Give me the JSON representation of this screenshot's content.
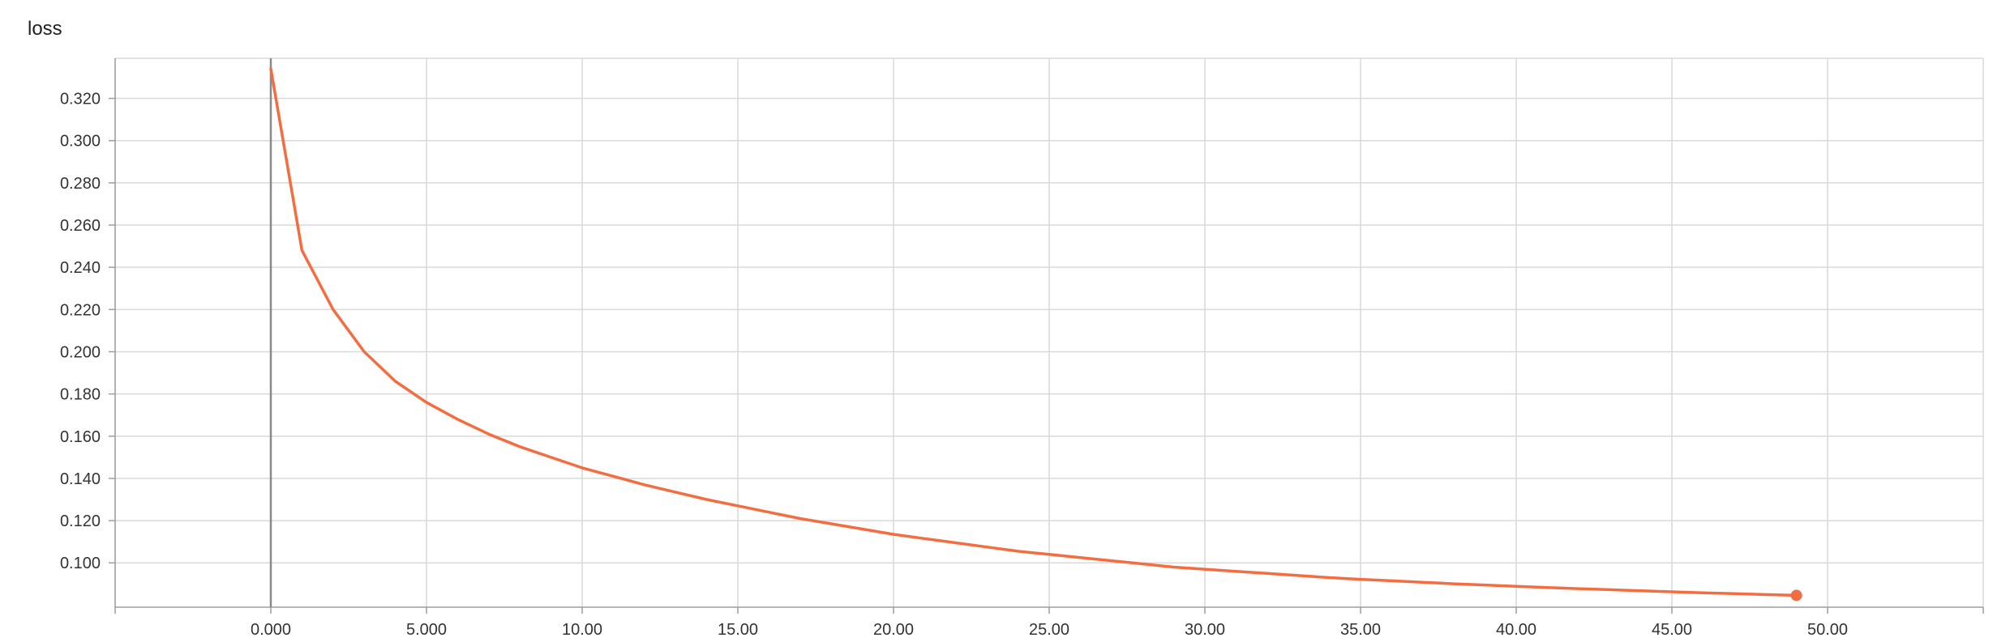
{
  "chart_data": {
    "type": "line",
    "title": "loss",
    "xlim": [
      -5,
      55
    ],
    "ylim": [
      0.079,
      0.339
    ],
    "x_ticks": [
      0,
      5,
      10,
      15,
      20,
      25,
      30,
      35,
      40,
      45,
      50
    ],
    "x_tick_labels": [
      "0.000",
      "5.000",
      "10.00",
      "15.00",
      "20.00",
      "25.00",
      "30.00",
      "35.00",
      "40.00",
      "45.00",
      "50.00"
    ],
    "y_ticks": [
      0.1,
      0.12,
      0.14,
      0.16,
      0.18,
      0.2,
      0.22,
      0.24,
      0.26,
      0.28,
      0.3,
      0.32
    ],
    "y_tick_labels": [
      "0.100",
      "0.120",
      "0.140",
      "0.160",
      "0.180",
      "0.200",
      "0.220",
      "0.240",
      "0.260",
      "0.280",
      "0.300",
      "0.320"
    ],
    "grid": true,
    "series": [
      {
        "color": "#f36d40",
        "x": [
          0,
          1,
          2,
          3,
          4,
          5,
          6,
          7,
          8,
          9,
          10,
          11,
          12,
          13,
          14,
          15,
          16,
          17,
          18,
          19,
          20,
          21,
          22,
          23,
          24,
          25,
          26,
          27,
          28,
          29,
          30,
          31,
          32,
          33,
          34,
          35,
          36,
          37,
          38,
          39,
          40,
          41,
          42,
          43,
          44,
          45,
          46,
          47,
          48,
          49
        ],
        "y": [
          0.334,
          0.248,
          0.22,
          0.2,
          0.186,
          0.176,
          0.168,
          0.161,
          0.155,
          0.15,
          0.145,
          0.141,
          0.137,
          0.1335,
          0.13,
          0.127,
          0.124,
          0.121,
          0.1185,
          0.116,
          0.1135,
          0.1115,
          0.1095,
          0.1075,
          0.1055,
          0.104,
          0.1025,
          0.101,
          0.0995,
          0.098,
          0.097,
          0.096,
          0.095,
          0.094,
          0.093,
          0.0922,
          0.0915,
          0.0908,
          0.0901,
          0.0895,
          0.0889,
          0.0883,
          0.0878,
          0.0873,
          0.0868,
          0.0863,
          0.0858,
          0.0854,
          0.085,
          0.0846
        ]
      }
    ]
  }
}
